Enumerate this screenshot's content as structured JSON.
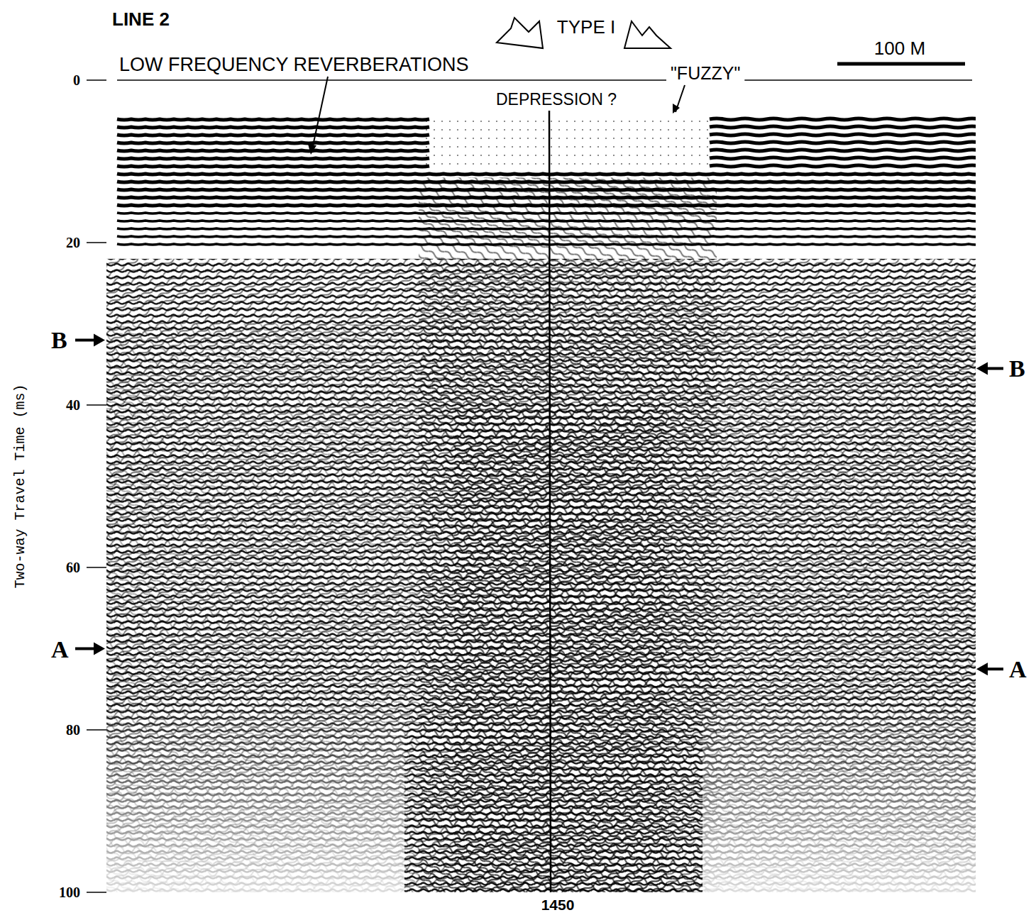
{
  "chart_data": {
    "type": "seismic_section",
    "title": "LINE 2",
    "y_label": "Two-way Travel Time (ms)",
    "ylim": [
      0,
      100
    ],
    "yticks": [
      0,
      20,
      40,
      60,
      80,
      100
    ],
    "annotations": [
      "TYPE I",
      "LOW FREQUENCY REVERBERATIONS",
      "DEPRESSION ?",
      "\"FUZZY\""
    ],
    "scale_bar": "100 M",
    "shotpoint": "1450",
    "horizons": [
      {
        "name": "B",
        "left": 32,
        "right": 35.5
      },
      {
        "name": "A",
        "left": 70,
        "right": 72.5
      }
    ]
  }
}
